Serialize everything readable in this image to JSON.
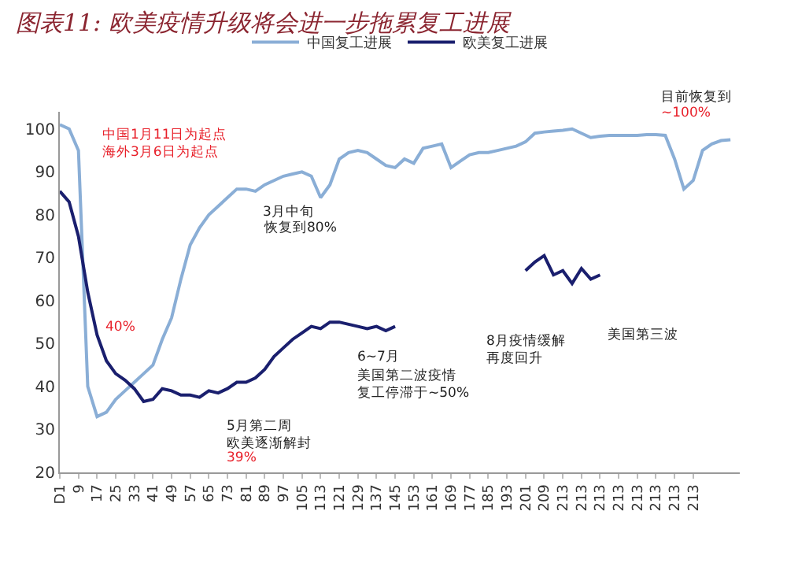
{
  "chart_data": {
    "type": "line",
    "title": "图表11: 欧美疫情升级将会进一步拖累复工进展",
    "categories": [
      "D1",
      null,
      "9",
      null,
      "17",
      null,
      "25",
      null,
      "33",
      null,
      "41",
      null,
      "49",
      null,
      "57",
      null,
      "65",
      null,
      "73",
      null,
      "81",
      null,
      "89",
      null,
      "97",
      null,
      "105",
      null,
      "113",
      null,
      "121",
      null,
      "129",
      null,
      "137",
      null,
      "145",
      null,
      "153",
      null,
      "161",
      null,
      "169",
      null,
      "177",
      null,
      "185",
      null,
      "193",
      null,
      "201",
      null,
      "209",
      null,
      "213",
      null,
      "213",
      null,
      "213",
      null,
      "213",
      null,
      "213",
      null,
      "213",
      null,
      "213",
      null,
      "213",
      null,
      null,
      null,
      null
    ],
    "series": [
      {
        "name": "中国复工进展",
        "color": "#8aaed6",
        "values": [
          101,
          100,
          95,
          40,
          33,
          34,
          37,
          39,
          41,
          43,
          45,
          51,
          56,
          65,
          73,
          77,
          80,
          82,
          84,
          86,
          86,
          85.5,
          87,
          88,
          89,
          89.5,
          90,
          89,
          84,
          87,
          93,
          94.5,
          95,
          94.5,
          93,
          91.5,
          91,
          93,
          92,
          95.5,
          96,
          96.5,
          91,
          92.5,
          94,
          94.5,
          94.5,
          95,
          95.5,
          96,
          97,
          99,
          99.3,
          99.5,
          99.7,
          100,
          99,
          98,
          98.3,
          98.5,
          98.5,
          98.5,
          98.5,
          98.7,
          98.7,
          98.5,
          93,
          86,
          88,
          95,
          96.5,
          97.3,
          97.5
        ]
      },
      {
        "name": "欧美复工进展",
        "color": "#1a1f6e",
        "values": [
          85.5,
          83,
          75,
          62,
          52,
          46,
          43,
          41.5,
          39.5,
          36.5,
          37,
          39.5,
          39,
          38,
          38,
          37.5,
          39,
          38.5,
          39.5,
          41,
          41,
          42,
          44,
          47,
          49,
          51,
          52.5,
          54,
          53.5,
          55,
          55,
          54.5,
          54,
          53.5,
          54,
          53,
          54,
          null,
          null,
          null,
          null,
          null,
          null,
          null,
          null,
          null,
          null,
          null,
          null,
          null,
          67,
          69,
          70.5,
          66,
          67,
          64,
          67.5,
          65,
          66,
          null,
          null,
          null,
          null,
          null,
          null,
          null,
          null,
          null,
          null,
          null,
          null,
          null,
          null
        ]
      }
    ],
    "ylim": [
      20,
      104
    ],
    "yticks": [
      20,
      30,
      40,
      50,
      60,
      70,
      80,
      90,
      100
    ],
    "grid": false,
    "legend": "top",
    "marker": "none",
    "line_style": "solid",
    "annotations": [
      "中国1月11日为起点",
      "海外3月6日为起点",
      "3月中旬",
      "恢复到80%",
      "40%",
      "5月第二周",
      "欧美逐渐解封",
      "39%",
      "6~7月",
      "美国第二波疫情",
      "复工停滞于~50%",
      "8月疫情缓解",
      "再度回升",
      "美国第三波",
      "目前恢复到",
      "~100%"
    ]
  }
}
